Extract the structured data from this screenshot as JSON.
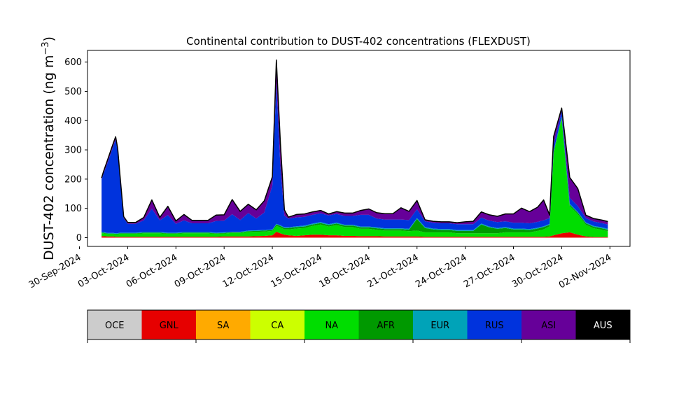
{
  "chart_data": {
    "type": "area",
    "title": "Continental contribution to DUST-402 concentrations (FLEXDUST)",
    "ylabel": "DUST-402 concentration (ng m",
    "ylabel_sup": "−3",
    "ylabel_close": ")",
    "xlabel": "",
    "ylim": [
      -30,
      640
    ],
    "xlim": [
      "2024-09-30 12:00",
      "2024-11-03 06:00"
    ],
    "yticks": [
      0,
      100,
      200,
      300,
      400,
      500,
      600
    ],
    "yticks_labels": [
      "0",
      "100",
      "200",
      "300",
      "400",
      "500",
      "600"
    ],
    "xticks": [
      "2024-09-30",
      "2024-10-03",
      "2024-10-06",
      "2024-10-09",
      "2024-10-12",
      "2024-10-15",
      "2024-10-18",
      "2024-10-21",
      "2024-10-24",
      "2024-10-27",
      "2024-10-30",
      "2024-11-02"
    ],
    "xtick_labels": [
      "30-Sep-2024",
      "03-Oct-2024",
      "06-Oct-2024",
      "09-Oct-2024",
      "12-Oct-2024",
      "15-Oct-2024",
      "18-Oct-2024",
      "21-Oct-2024",
      "24-Oct-2024",
      "27-Oct-2024",
      "30-Oct-2024",
      "02-Nov-2024"
    ],
    "grid": false,
    "stack_order": [
      "GNL",
      "NA",
      "AFR",
      "EUR",
      "RUS",
      "ASI"
    ],
    "x": [
      "2024-10-01 09:00",
      "2024-10-01 12:00",
      "2024-10-01 18:00",
      "2024-10-02 00:00",
      "2024-10-02 03:00",
      "2024-10-02 06:00",
      "2024-10-02 09:00",
      "2024-10-02 12:00",
      "2024-10-02 18:00",
      "2024-10-03 00:00",
      "2024-10-03 12:00",
      "2024-10-04 00:00",
      "2024-10-04 12:00",
      "2024-10-05 00:00",
      "2024-10-05 12:00",
      "2024-10-06 00:00",
      "2024-10-06 12:00",
      "2024-10-07 00:00",
      "2024-10-07 12:00",
      "2024-10-08 00:00",
      "2024-10-08 12:00",
      "2024-10-09 00:00",
      "2024-10-09 12:00",
      "2024-10-10 00:00",
      "2024-10-10 12:00",
      "2024-10-11 00:00",
      "2024-10-11 12:00",
      "2024-10-12 00:00",
      "2024-10-12 06:00",
      "2024-10-12 12:00",
      "2024-10-12 18:00",
      "2024-10-13 00:00",
      "2024-10-13 12:00",
      "2024-10-14 00:00",
      "2024-10-14 12:00",
      "2024-10-15 00:00",
      "2024-10-15 12:00",
      "2024-10-16 00:00",
      "2024-10-16 12:00",
      "2024-10-17 00:00",
      "2024-10-17 12:00",
      "2024-10-18 00:00",
      "2024-10-18 12:00",
      "2024-10-19 00:00",
      "2024-10-19 12:00",
      "2024-10-20 00:00",
      "2024-10-20 12:00",
      "2024-10-21 00:00",
      "2024-10-21 12:00",
      "2024-10-22 00:00",
      "2024-10-22 12:00",
      "2024-10-23 00:00",
      "2024-10-23 12:00",
      "2024-10-24 00:00",
      "2024-10-24 12:00",
      "2024-10-25 00:00",
      "2024-10-25 12:00",
      "2024-10-26 00:00",
      "2024-10-26 12:00",
      "2024-10-27 00:00",
      "2024-10-27 12:00",
      "2024-10-28 00:00",
      "2024-10-28 12:00",
      "2024-10-28 21:00",
      "2024-10-29 06:00",
      "2024-10-29 12:00",
      "2024-10-30 00:00",
      "2024-10-30 12:00",
      "2024-10-31 00:00",
      "2024-10-31 12:00",
      "2024-11-01 00:00",
      "2024-11-01 12:00",
      "2024-11-01 21:00"
    ],
    "series": [
      {
        "name": "GNL",
        "color": "#e60000",
        "values": [
          5,
          5,
          4,
          4,
          4,
          3,
          3,
          3,
          3,
          3,
          3,
          3,
          3,
          3,
          3,
          3,
          3,
          3,
          3,
          3,
          3,
          4,
          4,
          4,
          4,
          5,
          6,
          8,
          20,
          15,
          10,
          8,
          6,
          8,
          10,
          10,
          8,
          8,
          6,
          6,
          5,
          5,
          5,
          4,
          4,
          4,
          4,
          4,
          3,
          3,
          3,
          3,
          3,
          3,
          3,
          3,
          3,
          3,
          3,
          3,
          3,
          3,
          3,
          3,
          4,
          8,
          15,
          18,
          10,
          4,
          2,
          2,
          2
        ]
      },
      {
        "name": "NA",
        "color": "#00dd00",
        "values": [
          10,
          10,
          8,
          8,
          8,
          8,
          8,
          10,
          10,
          10,
          10,
          12,
          12,
          12,
          10,
          10,
          12,
          12,
          12,
          12,
          10,
          10,
          12,
          12,
          15,
          15,
          15,
          15,
          20,
          20,
          18,
          20,
          25,
          25,
          30,
          35,
          30,
          35,
          30,
          30,
          25,
          25,
          22,
          20,
          20,
          20,
          18,
          20,
          15,
          15,
          15,
          15,
          12,
          12,
          12,
          12,
          12,
          12,
          15,
          15,
          15,
          15,
          20,
          25,
          35,
          280,
          390,
          90,
          70,
          40,
          30,
          25,
          20
        ]
      },
      {
        "name": "AFR",
        "color": "#009900",
        "values": [
          2,
          2,
          2,
          2,
          2,
          2,
          2,
          2,
          2,
          2,
          2,
          2,
          2,
          2,
          2,
          2,
          2,
          2,
          2,
          2,
          2,
          2,
          2,
          2,
          3,
          3,
          3,
          3,
          5,
          5,
          5,
          5,
          5,
          5,
          5,
          5,
          5,
          5,
          5,
          5,
          5,
          5,
          5,
          5,
          5,
          5,
          5,
          40,
          15,
          10,
          8,
          8,
          8,
          8,
          8,
          30,
          20,
          15,
          15,
          10,
          10,
          8,
          8,
          8,
          5,
          5,
          5,
          5,
          5,
          5,
          5,
          5,
          5
        ]
      },
      {
        "name": "EUR",
        "color": "#00a3b8",
        "values": [
          2,
          2,
          2,
          2,
          2,
          2,
          2,
          2,
          2,
          2,
          2,
          2,
          2,
          2,
          2,
          2,
          2,
          2,
          2,
          2,
          2,
          2,
          2,
          2,
          2,
          2,
          2,
          2,
          2,
          2,
          2,
          2,
          3,
          3,
          3,
          3,
          3,
          3,
          3,
          3,
          3,
          3,
          3,
          3,
          3,
          3,
          3,
          3,
          3,
          3,
          3,
          3,
          3,
          3,
          3,
          3,
          3,
          3,
          3,
          3,
          3,
          3,
          3,
          3,
          3,
          3,
          3,
          3,
          3,
          3,
          3,
          3,
          3
        ]
      },
      {
        "name": "RUS",
        "color": "#0033dd",
        "values": [
          180,
          200,
          240,
          280,
          300,
          320,
          280,
          200,
          50,
          30,
          30,
          40,
          80,
          40,
          60,
          30,
          40,
          30,
          30,
          30,
          40,
          40,
          60,
          40,
          60,
          40,
          60,
          150,
          480,
          200,
          40,
          30,
          30,
          30,
          30,
          30,
          30,
          30,
          30,
          30,
          40,
          40,
          30,
          30,
          30,
          30,
          30,
          30,
          20,
          20,
          20,
          20,
          20,
          20,
          20,
          20,
          20,
          20,
          20,
          20,
          20,
          20,
          20,
          20,
          20,
          20,
          20,
          20,
          20,
          15,
          15,
          15,
          15
        ]
      },
      {
        "name": "ASI",
        "color": "#660099",
        "values": [
          5,
          8,
          10,
          10,
          10,
          10,
          10,
          10,
          5,
          5,
          5,
          10,
          30,
          10,
          30,
          10,
          20,
          10,
          10,
          10,
          20,
          20,
          50,
          30,
          30,
          30,
          40,
          30,
          80,
          80,
          20,
          5,
          10,
          10,
          10,
          10,
          5,
          8,
          10,
          10,
          15,
          20,
          20,
          20,
          20,
          40,
          30,
          30,
          5,
          5,
          5,
          5,
          5,
          8,
          10,
          20,
          20,
          20,
          25,
          30,
          50,
          40,
          50,
          70,
          10,
          30,
          10,
          70,
          60,
          10,
          10,
          10,
          10
        ]
      }
    ]
  },
  "legend": {
    "items": [
      {
        "label": "OCE",
        "color": "#cccccc",
        "text_color": "#000000"
      },
      {
        "label": "GNL",
        "color": "#e60000",
        "text_color": "#000000"
      },
      {
        "label": "SA",
        "color": "#ffaa00",
        "text_color": "#000000"
      },
      {
        "label": "CA",
        "color": "#ccff00",
        "text_color": "#000000"
      },
      {
        "label": "NA",
        "color": "#00dd00",
        "text_color": "#000000"
      },
      {
        "label": "AFR",
        "color": "#009900",
        "text_color": "#000000"
      },
      {
        "label": "EUR",
        "color": "#00a3b8",
        "text_color": "#000000"
      },
      {
        "label": "RUS",
        "color": "#0033dd",
        "text_color": "#000000"
      },
      {
        "label": "ASI",
        "color": "#660099",
        "text_color": "#000000"
      },
      {
        "label": "AUS",
        "color": "#000000",
        "text_color": "#ffffff"
      }
    ]
  }
}
